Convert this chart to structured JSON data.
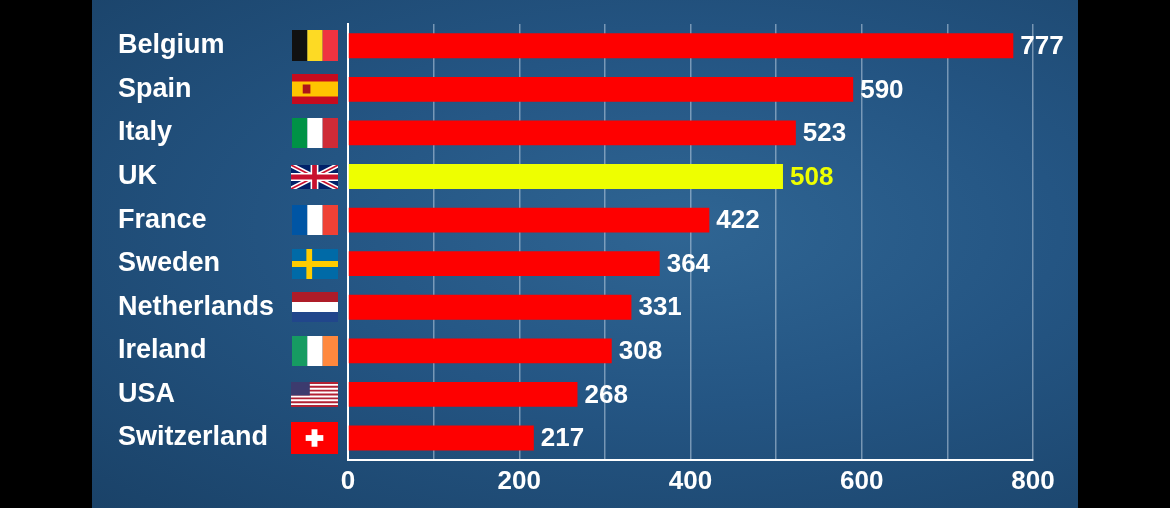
{
  "chart_data": {
    "type": "bar",
    "orientation": "horizontal",
    "categories": [
      "Belgium",
      "Spain",
      "Italy",
      "UK",
      "France",
      "Sweden",
      "Netherlands",
      "Ireland",
      "USA",
      "Switzerland"
    ],
    "values": [
      777,
      590,
      523,
      508,
      422,
      364,
      331,
      308,
      268,
      217
    ],
    "colors": [
      "#fe0000",
      "#fe0000",
      "#fe0000",
      "#eeff00",
      "#fe0000",
      "#fe0000",
      "#fe0000",
      "#fe0000",
      "#fe0000",
      "#fe0000"
    ],
    "xlim": [
      0,
      800
    ],
    "xticks": [
      0,
      {
        "value": 100,
        "label": null
      },
      200,
      {
        "value": 300,
        "label": null
      },
      400,
      {
        "value": 500,
        "label": null
      },
      600,
      {
        "value": 700,
        "label": null
      },
      800
    ],
    "grid": "x",
    "data_labels": true
  }
}
